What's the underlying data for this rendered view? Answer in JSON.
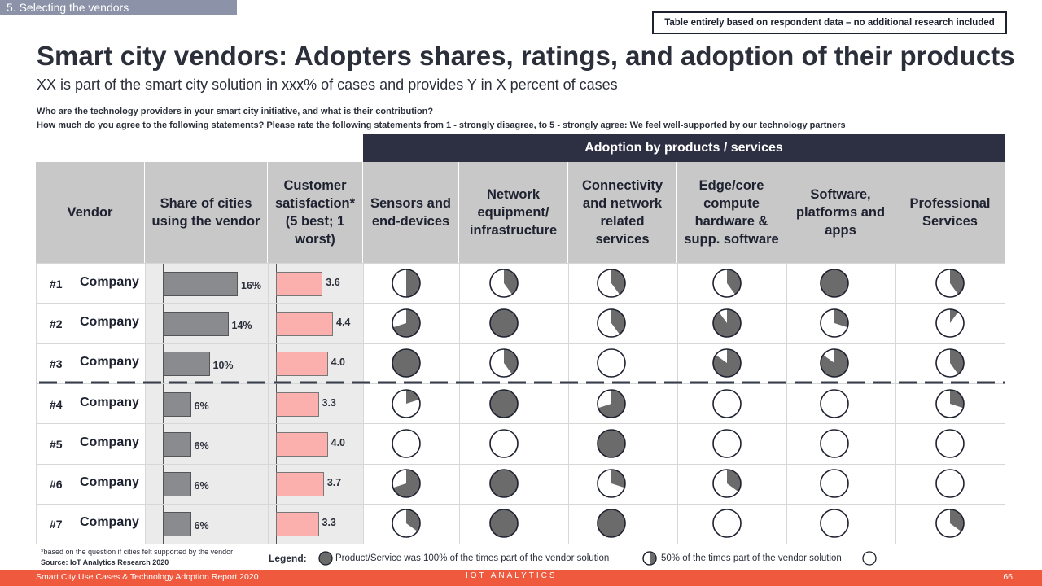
{
  "section_tab": "5. Selecting the vendors",
  "note": "Table entirely based on respondent data – no additional research included",
  "title": "Smart city vendors: Adopters shares, ratings, and adoption of their products",
  "subtitle": "XX is part of the smart city solution in xxx% of cases and provides Y in X percent of cases",
  "question1": "Who are the technology providers in your smart city initiative, and what is their contribution?",
  "question2": "How much do you agree to the following statements? Please rate the following statements from 1 - strongly disagree, to 5 - strongly agree: We feel well-supported by our technology partners",
  "adoption_header": "Adoption by products / services",
  "columns": {
    "vendor": "Vendor",
    "share": "Share of cities using the vendor",
    "satisfaction": "Customer satisfaction* (5 best; 1 worst)",
    "products": [
      "Sensors and end-devices",
      "Network equipment/ infrastructure",
      "Connectivity and network related services",
      "Edge/core compute hardware & supp. software",
      "Software, platforms and apps",
      "Professional Services"
    ]
  },
  "rows": [
    {
      "rank": "#1",
      "vendor": "Company",
      "share": 16,
      "share_label": "16%",
      "sat": 3.6,
      "sat_label": "3.6",
      "adoption": [
        0.5,
        0.4,
        0.4,
        0.4,
        1.0,
        0.4
      ]
    },
    {
      "rank": "#2",
      "vendor": "Company",
      "share": 14,
      "share_label": "14%",
      "sat": 4.4,
      "sat_label": "4.4",
      "adoption": [
        0.7,
        1.0,
        0.4,
        0.9,
        0.3,
        0.1
      ]
    },
    {
      "rank": "#3",
      "vendor": "Company",
      "share": 10,
      "share_label": "10%",
      "sat": 4.0,
      "sat_label": "4.0",
      "adoption": [
        1.0,
        0.4,
        0.0,
        0.85,
        0.85,
        0.4
      ]
    },
    {
      "rank": "#4",
      "vendor": "Company",
      "share": 6,
      "share_label": "6%",
      "sat": 3.3,
      "sat_label": "3.3",
      "adoption": [
        0.2,
        1.0,
        0.7,
        0.0,
        0.0,
        0.3
      ]
    },
    {
      "rank": "#5",
      "vendor": "Company",
      "share": 6,
      "share_label": "6%",
      "sat": 4.0,
      "sat_label": "4.0",
      "adoption": [
        0.0,
        0.0,
        1.0,
        0.0,
        0.0,
        0.0
      ]
    },
    {
      "rank": "#6",
      "vendor": "Company",
      "share": 6,
      "share_label": "6%",
      "sat": 3.7,
      "sat_label": "3.7",
      "adoption": [
        0.7,
        1.0,
        0.3,
        0.35,
        0.0,
        0.0
      ]
    },
    {
      "rank": "#7",
      "vendor": "Company",
      "share": 6,
      "share_label": "6%",
      "sat": 3.3,
      "sat_label": "3.3",
      "adoption": [
        0.35,
        1.0,
        1.0,
        0.0,
        0.0,
        0.35
      ]
    }
  ],
  "share_max": 16,
  "sat_max": 4.4,
  "footnote1": "*based on the question if cities felt supported by the vendor",
  "footnote2": "Source: IoT Analytics Research 2020",
  "legend": {
    "title": "Legend:",
    "full": "Product/Service was 100% of the times part of the vendor solution",
    "half": "50% of the times part of the vendor solution"
  },
  "footer": {
    "report": "Smart City Use Cases & Technology Adoption Report 2020",
    "logo": "IOT ANALYTICS",
    "page": "66"
  },
  "colors": {
    "pie_fill": "#6b6b6b",
    "share_bar": "#8a8b8f",
    "sat_bar": "#fbb0ae",
    "accent": "#ef5a3f"
  }
}
